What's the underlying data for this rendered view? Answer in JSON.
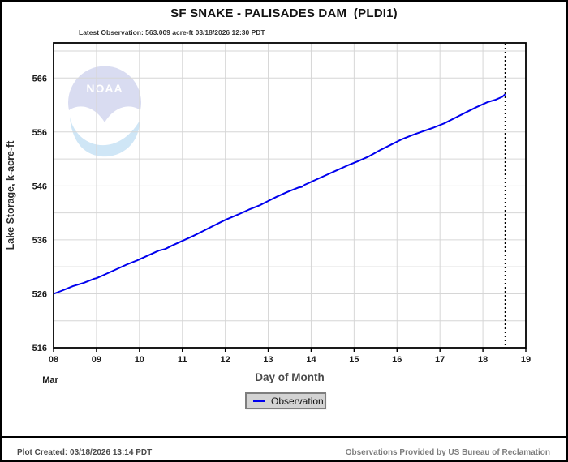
{
  "header": {
    "title": "SF SNAKE - PALISADES DAM  (PLDI1)",
    "latest_observation": "Latest Observation: 563.009 acre-ft 03/18/2026 12:30 PDT"
  },
  "watermark": {
    "text": "NOAA"
  },
  "chart_data": {
    "type": "line",
    "title": "SF SNAKE - PALISADES DAM  (PLDI1)",
    "xlabel": "Day of Month",
    "ylabel": "Lake Storage, k-acre-ft",
    "month_label": "Mar",
    "x_ticks": [
      "08",
      "09",
      "10",
      "11",
      "12",
      "13",
      "14",
      "15",
      "16",
      "17",
      "18",
      "19"
    ],
    "x_tick_values": [
      8,
      9,
      10,
      11,
      12,
      13,
      14,
      15,
      16,
      17,
      18,
      19
    ],
    "y_ticks": [
      516,
      526,
      536,
      546,
      556,
      566
    ],
    "xlim": [
      8,
      19
    ],
    "ylim": [
      516,
      572.5
    ],
    "y_minor_step": 5,
    "grid": true,
    "grid_color": "#d6d6d6",
    "frame_color": "#000000",
    "line_color": "#0000ee",
    "latest_marker": {
      "x": 18.52,
      "style": "dotted-vertical",
      "color": "#000000"
    },
    "series": [
      {
        "name": "Observation",
        "color": "#0000ee",
        "points": [
          [
            8.0,
            526.0
          ],
          [
            8.2,
            526.6
          ],
          [
            8.45,
            527.4
          ],
          [
            8.7,
            528.0
          ],
          [
            8.95,
            528.8
          ],
          [
            9.0,
            528.9
          ],
          [
            9.2,
            529.6
          ],
          [
            9.45,
            530.5
          ],
          [
            9.7,
            531.4
          ],
          [
            9.95,
            532.2
          ],
          [
            10.2,
            533.1
          ],
          [
            10.45,
            534.0
          ],
          [
            10.6,
            534.3
          ],
          [
            10.75,
            534.9
          ],
          [
            11.0,
            535.8
          ],
          [
            11.25,
            536.7
          ],
          [
            11.5,
            537.7
          ],
          [
            11.75,
            538.7
          ],
          [
            12.0,
            539.7
          ],
          [
            12.3,
            540.7
          ],
          [
            12.55,
            541.6
          ],
          [
            12.8,
            542.4
          ],
          [
            13.0,
            543.2
          ],
          [
            13.2,
            544.0
          ],
          [
            13.45,
            544.9
          ],
          [
            13.7,
            545.7
          ],
          [
            13.78,
            545.8
          ],
          [
            13.85,
            546.2
          ],
          [
            14.1,
            547.1
          ],
          [
            14.35,
            548.0
          ],
          [
            14.6,
            548.9
          ],
          [
            14.85,
            549.8
          ],
          [
            15.1,
            550.6
          ],
          [
            15.35,
            551.5
          ],
          [
            15.6,
            552.6
          ],
          [
            15.85,
            553.6
          ],
          [
            16.1,
            554.6
          ],
          [
            16.35,
            555.4
          ],
          [
            16.6,
            556.1
          ],
          [
            16.85,
            556.8
          ],
          [
            17.1,
            557.6
          ],
          [
            17.35,
            558.6
          ],
          [
            17.6,
            559.6
          ],
          [
            17.85,
            560.6
          ],
          [
            18.1,
            561.5
          ],
          [
            18.3,
            562.0
          ],
          [
            18.45,
            562.5
          ],
          [
            18.52,
            563.009
          ]
        ]
      }
    ]
  },
  "legend": {
    "items": [
      {
        "label": "Observation",
        "color": "#0000ee"
      }
    ]
  },
  "footer": {
    "left": "Plot Created: 03/18/2026 13:14 PDT",
    "right": "Observations Provided by US Bureau of Reclamation"
  }
}
